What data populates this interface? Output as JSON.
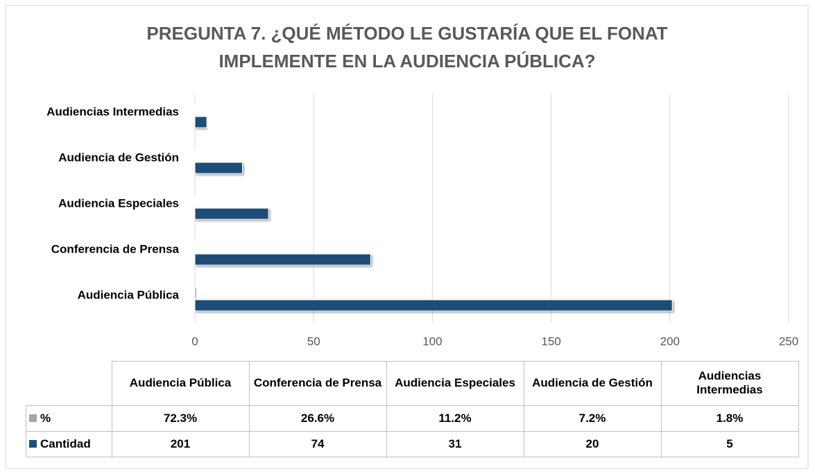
{
  "chart_data": {
    "type": "bar",
    "orientation": "horizontal",
    "title": "PREGUNTA 7. ¿QUÉ MÉTODO LE GUSTARÍA QUE EL FONAT IMPLEMENTE EN LA AUDIENCIA PÚBLICA?",
    "categories": [
      "Audiencia Pública",
      "Conferencia de Prensa",
      "Audiencia Especiales",
      "Audiencia de Gestión",
      "Audiencias Intermedias"
    ],
    "series": [
      {
        "name": "%",
        "color": "#a5a5a5",
        "values": [
          0.723,
          0.266,
          0.112,
          0.072,
          0.018
        ],
        "value_labels": [
          "72.3%",
          "26.6%",
          "11.2%",
          "7.2%",
          "1.8%"
        ]
      },
      {
        "name": "Cantidad",
        "color": "#1f4e79",
        "values": [
          201,
          74,
          31,
          20,
          5
        ]
      }
    ],
    "xlim": [
      0,
      250
    ],
    "xticks": [
      0,
      50,
      100,
      150,
      200,
      250
    ],
    "grid": true,
    "data_table": true
  }
}
